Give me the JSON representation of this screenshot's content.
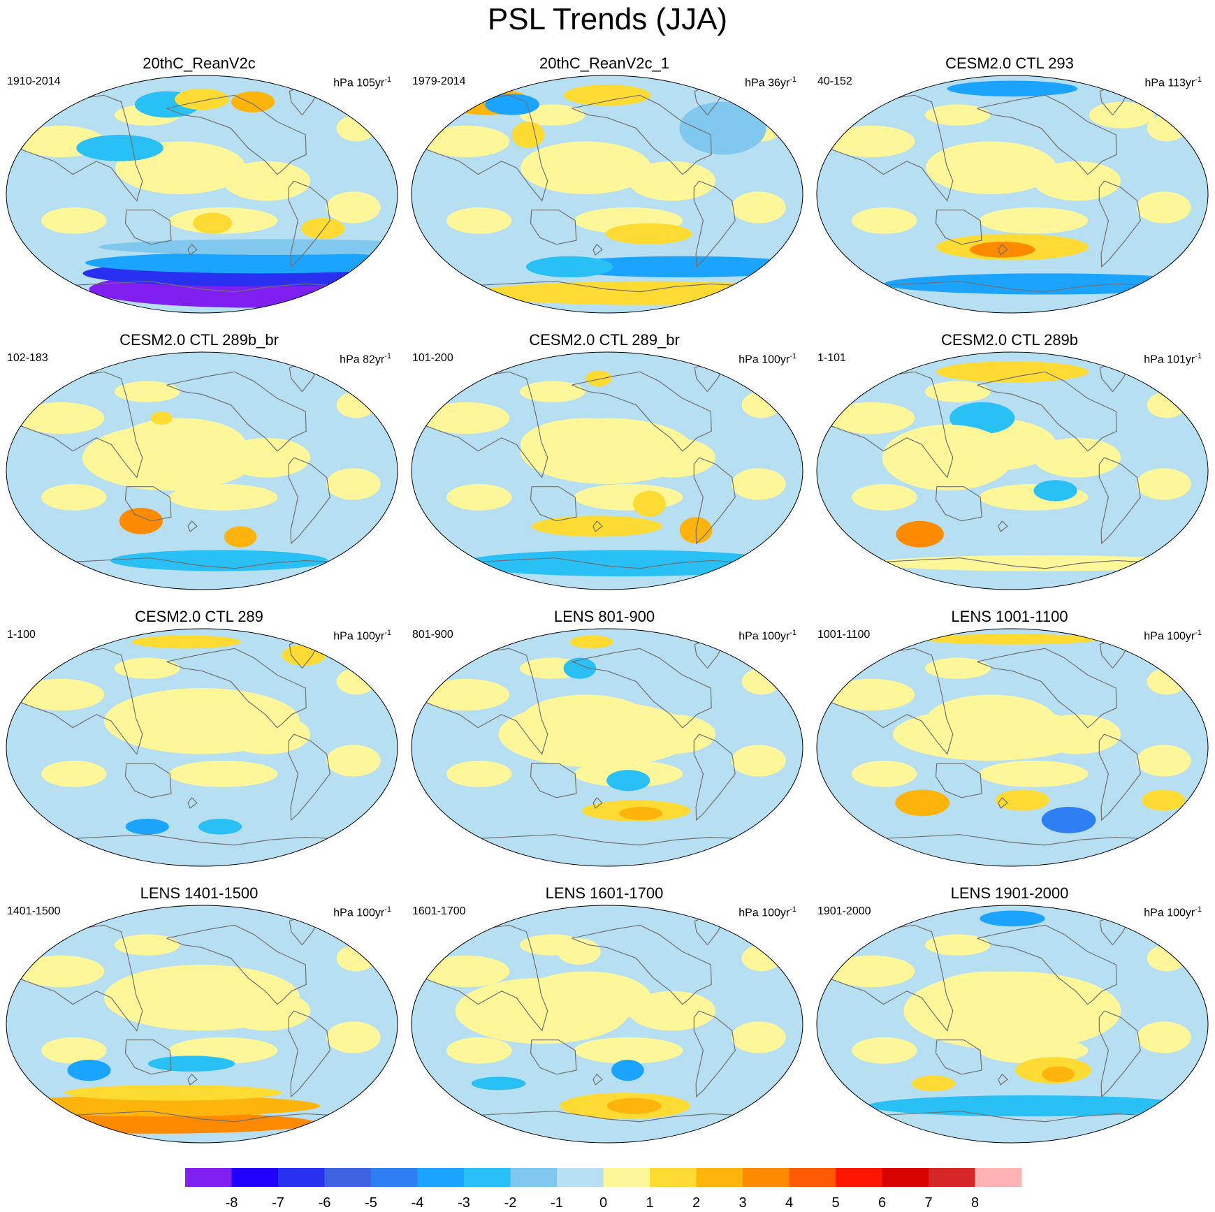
{
  "title": "PSL Trends (JJA)",
  "units_prefix": "hPa",
  "units_suffix": "yr",
  "units_exponent": "-1",
  "panels": [
    {
      "title": "20thC_ReanV2c",
      "period": "1910-2014",
      "span": "105",
      "palette": {
        "ocean": "#b7dff2",
        "land": "#fef79a"
      },
      "anomalies": [
        {
          "lon": 60,
          "lat": -72,
          "rx": 150,
          "ry": 14,
          "level": -8
        },
        {
          "lon": 60,
          "lat": -60,
          "rx": 160,
          "ry": 10,
          "level": -6
        },
        {
          "lon": 60,
          "lat": -52,
          "rx": 160,
          "ry": 8,
          "level": -3
        },
        {
          "lon": 70,
          "lat": -40,
          "rx": 160,
          "ry": 6,
          "level": -1
        },
        {
          "lon": -40,
          "lat": 68,
          "rx": 30,
          "ry": 10,
          "level": -2
        },
        {
          "lon": 0,
          "lat": 72,
          "rx": 25,
          "ry": 8,
          "level": 2
        },
        {
          "lon": 60,
          "lat": 70,
          "rx": 20,
          "ry": 8,
          "level": 3
        },
        {
          "lon": -80,
          "lat": 35,
          "rx": 40,
          "ry": 10,
          "level": -2
        },
        {
          "lon": 10,
          "lat": -22,
          "rx": 18,
          "ry": 8,
          "level": 2
        },
        {
          "lon": 115,
          "lat": -26,
          "rx": 20,
          "ry": 8,
          "level": 2
        }
      ]
    },
    {
      "title": "20thC_ReanV2c_1",
      "period": "1979-2014",
      "span": "36",
      "palette": {
        "ocean": "#b7dff2",
        "land": "#fef79a"
      },
      "anomalies": [
        {
          "lon": 50,
          "lat": -75,
          "rx": 160,
          "ry": 9,
          "level": 2
        },
        {
          "lon": 80,
          "lat": -55,
          "rx": 120,
          "ry": 8,
          "level": -3
        },
        {
          "lon": -40,
          "lat": -55,
          "rx": 40,
          "ry": 8,
          "level": -2
        },
        {
          "lon": 40,
          "lat": -30,
          "rx": 40,
          "ry": 8,
          "level": 2
        },
        {
          "lon": -140,
          "lat": 70,
          "rx": 40,
          "ry": 10,
          "level": 3
        },
        {
          "lon": -110,
          "lat": 68,
          "rx": 25,
          "ry": 8,
          "level": -3
        },
        {
          "lon": 0,
          "lat": 75,
          "rx": 40,
          "ry": 8,
          "level": 2
        },
        {
          "lon": 120,
          "lat": 50,
          "rx": 40,
          "ry": 20,
          "level": -1
        },
        {
          "lon": -80,
          "lat": 45,
          "rx": 15,
          "ry": 10,
          "level": 2
        }
      ]
    },
    {
      "title": "CESM2.0 CTL 293",
      "period": "40-152",
      "span": "113",
      "palette": {
        "ocean": "#b7dff2",
        "land": "#fef79a"
      },
      "anomalies": [
        {
          "lon": 0,
          "lat": 80,
          "rx": 60,
          "ry": 6,
          "level": -3
        },
        {
          "lon": 0,
          "lat": -40,
          "rx": 70,
          "ry": 10,
          "level": 2
        },
        {
          "lon": -10,
          "lat": -42,
          "rx": 30,
          "ry": 6,
          "level": 4
        },
        {
          "lon": 40,
          "lat": -68,
          "rx": 150,
          "ry": 8,
          "level": -3
        },
        {
          "lon": -20,
          "lat": 20,
          "rx": 60,
          "ry": 20,
          "level": 1
        },
        {
          "lon": 120,
          "lat": 60,
          "rx": 30,
          "ry": 10,
          "level": 1
        }
      ]
    },
    {
      "title": "CESM2.0 CTL 289b_br",
      "period": "102-183",
      "span": "82",
      "palette": {
        "ocean": "#b7dff2",
        "land": "#fef79a"
      },
      "anomalies": [
        {
          "lon": -60,
          "lat": -38,
          "rx": 20,
          "ry": 10,
          "level": 4
        },
        {
          "lon": 40,
          "lat": -50,
          "rx": 15,
          "ry": 8,
          "level": 3
        },
        {
          "lon": 20,
          "lat": -68,
          "rx": 100,
          "ry": 8,
          "level": -2
        },
        {
          "lon": -30,
          "lat": 10,
          "rx": 80,
          "ry": 25,
          "level": 1
        },
        {
          "lon": -40,
          "lat": 40,
          "rx": 10,
          "ry": 5,
          "level": 2
        }
      ]
    },
    {
      "title": "CESM2.0 CTL 289_br",
      "period": "101-200",
      "span": "100",
      "palette": {
        "ocean": "#b7dff2",
        "land": "#fef79a"
      },
      "anomalies": [
        {
          "lon": -10,
          "lat": -42,
          "rx": 60,
          "ry": 8,
          "level": 2
        },
        {
          "lon": 40,
          "lat": -25,
          "rx": 15,
          "ry": 10,
          "level": 2
        },
        {
          "lon": 90,
          "lat": -45,
          "rx": 15,
          "ry": 10,
          "level": 3
        },
        {
          "lon": 20,
          "lat": -70,
          "rx": 150,
          "ry": 10,
          "level": -2
        },
        {
          "lon": 0,
          "lat": 15,
          "rx": 80,
          "ry": 25,
          "level": 1
        },
        {
          "lon": -10,
          "lat": 70,
          "rx": 12,
          "ry": 6,
          "level": 2
        }
      ]
    },
    {
      "title": "CESM2.0 CTL 289b",
      "period": "1-101",
      "span": "101",
      "palette": {
        "ocean": "#b7dff2",
        "land": "#fef79a"
      },
      "anomalies": [
        {
          "lon": -95,
          "lat": -48,
          "rx": 22,
          "ry": 10,
          "level": 4
        },
        {
          "lon": 0,
          "lat": 75,
          "rx": 70,
          "ry": 8,
          "level": 2
        },
        {
          "lon": -30,
          "lat": 40,
          "rx": 30,
          "ry": 12,
          "level": -2
        },
        {
          "lon": 40,
          "lat": -15,
          "rx": 20,
          "ry": 8,
          "level": -2
        },
        {
          "lon": 30,
          "lat": -70,
          "rx": 150,
          "ry": 6,
          "level": 1
        },
        {
          "lon": -60,
          "lat": 10,
          "rx": 60,
          "ry": 25,
          "level": 1
        }
      ]
    },
    {
      "title": "CESM2.0 CTL 289",
      "period": "1-100",
      "span": "100",
      "palette": {
        "ocean": "#b7dff2",
        "land": "#fef79a"
      },
      "anomalies": [
        {
          "lon": -20,
          "lat": 80,
          "rx": 50,
          "ry": 5,
          "level": 2
        },
        {
          "lon": 120,
          "lat": 70,
          "rx": 20,
          "ry": 8,
          "level": 2
        },
        {
          "lon": -60,
          "lat": -60,
          "rx": 20,
          "ry": 6,
          "level": -3
        },
        {
          "lon": 20,
          "lat": -60,
          "rx": 20,
          "ry": 6,
          "level": -2
        },
        {
          "lon": 0,
          "lat": 20,
          "rx": 90,
          "ry": 25,
          "level": 1
        }
      ]
    },
    {
      "title": "LENS 801-900",
      "period": "801-900",
      "span": "100",
      "palette": {
        "ocean": "#b7dff2",
        "land": "#fef79a"
      },
      "anomalies": [
        {
          "lon": 30,
          "lat": -48,
          "rx": 50,
          "ry": 8,
          "level": 2
        },
        {
          "lon": 35,
          "lat": -50,
          "rx": 20,
          "ry": 5,
          "level": 3
        },
        {
          "lon": 20,
          "lat": -25,
          "rx": 20,
          "ry": 8,
          "level": -2
        },
        {
          "lon": -20,
          "lat": 80,
          "rx": 20,
          "ry": 5,
          "level": 2
        },
        {
          "lon": -10,
          "lat": 10,
          "rx": 90,
          "ry": 25,
          "level": 1
        },
        {
          "lon": -30,
          "lat": 60,
          "rx": 15,
          "ry": 8,
          "level": -2
        }
      ]
    },
    {
      "title": "LENS 1001-1100",
      "period": "1001-1100",
      "span": "100",
      "palette": {
        "ocean": "#b7dff2",
        "land": "#fef79a"
      },
      "anomalies": [
        {
          "lon": 60,
          "lat": -55,
          "rx": 25,
          "ry": 10,
          "level": -4
        },
        {
          "lon": -90,
          "lat": -42,
          "rx": 25,
          "ry": 10,
          "level": 3
        },
        {
          "lon": 10,
          "lat": -40,
          "rx": 25,
          "ry": 8,
          "level": 2
        },
        {
          "lon": 0,
          "lat": 82,
          "rx": 80,
          "ry": 4,
          "level": 2
        },
        {
          "lon": -20,
          "lat": 10,
          "rx": 90,
          "ry": 20,
          "level": 1
        },
        {
          "lon": 150,
          "lat": -40,
          "rx": 20,
          "ry": 8,
          "level": 2
        }
      ]
    },
    {
      "title": "LENS 1401-1500",
      "period": "1401-1500",
      "span": "100",
      "palette": {
        "ocean": "#b7dff2",
        "land": "#fef79a"
      },
      "anomalies": [
        {
          "lon": -60,
          "lat": -75,
          "rx": 150,
          "ry": 8,
          "level": 4
        },
        {
          "lon": -50,
          "lat": -62,
          "rx": 150,
          "ry": 8,
          "level": 3
        },
        {
          "lon": -30,
          "lat": -52,
          "rx": 100,
          "ry": 6,
          "level": 2
        },
        {
          "lon": -110,
          "lat": -35,
          "rx": 20,
          "ry": 8,
          "level": -3
        },
        {
          "lon": -10,
          "lat": -30,
          "rx": 40,
          "ry": 6,
          "level": -2
        },
        {
          "lon": 0,
          "lat": 20,
          "rx": 90,
          "ry": 25,
          "level": 1
        }
      ]
    },
    {
      "title": "LENS 1601-1700",
      "period": "1601-1700",
      "span": "100",
      "palette": {
        "ocean": "#b7dff2",
        "land": "#fef79a"
      },
      "anomalies": [
        {
          "lon": 20,
          "lat": -62,
          "rx": 60,
          "ry": 10,
          "level": 2
        },
        {
          "lon": 30,
          "lat": -62,
          "rx": 25,
          "ry": 6,
          "level": 3
        },
        {
          "lon": 20,
          "lat": -35,
          "rx": 15,
          "ry": 8,
          "level": -3
        },
        {
          "lon": -30,
          "lat": 55,
          "rx": 20,
          "ry": 10,
          "level": 1
        },
        {
          "lon": -60,
          "lat": 10,
          "rx": 80,
          "ry": 25,
          "level": 1
        },
        {
          "lon": -110,
          "lat": -45,
          "rx": 25,
          "ry": 5,
          "level": -2
        }
      ]
    },
    {
      "title": "LENS 1901-2000",
      "period": "1901-2000",
      "span": "100",
      "palette": {
        "ocean": "#b7dff2",
        "land": "#fef79a"
      },
      "anomalies": [
        {
          "lon": 40,
          "lat": -35,
          "rx": 35,
          "ry": 10,
          "level": 2
        },
        {
          "lon": 45,
          "lat": -38,
          "rx": 15,
          "ry": 6,
          "level": 3
        },
        {
          "lon": 0,
          "lat": 80,
          "rx": 30,
          "ry": 6,
          "level": -3
        },
        {
          "lon": 20,
          "lat": -62,
          "rx": 150,
          "ry": 8,
          "level": -2
        },
        {
          "lon": 0,
          "lat": 10,
          "rx": 100,
          "ry": 30,
          "level": 1
        },
        {
          "lon": -80,
          "lat": -45,
          "rx": 20,
          "ry": 6,
          "level": 2
        }
      ]
    }
  ],
  "colorbar": {
    "labels": [
      "-8",
      "-7",
      "-6",
      "-5",
      "-4",
      "-3",
      "-2",
      "-1",
      "0",
      "1",
      "2",
      "3",
      "4",
      "5",
      "6",
      "7",
      "8"
    ],
    "colors": [
      "#7f1ff0",
      "#2200ff",
      "#2a30f0",
      "#3d63e0",
      "#2e80f2",
      "#1aa3ff",
      "#29c0f5",
      "#80c8ee",
      "#b7dff2",
      "#fef79a",
      "#fedb32",
      "#feb40a",
      "#fe8a00",
      "#fe5a00",
      "#ff1500",
      "#d90000",
      "#d42626",
      "#ffb3b3"
    ]
  }
}
